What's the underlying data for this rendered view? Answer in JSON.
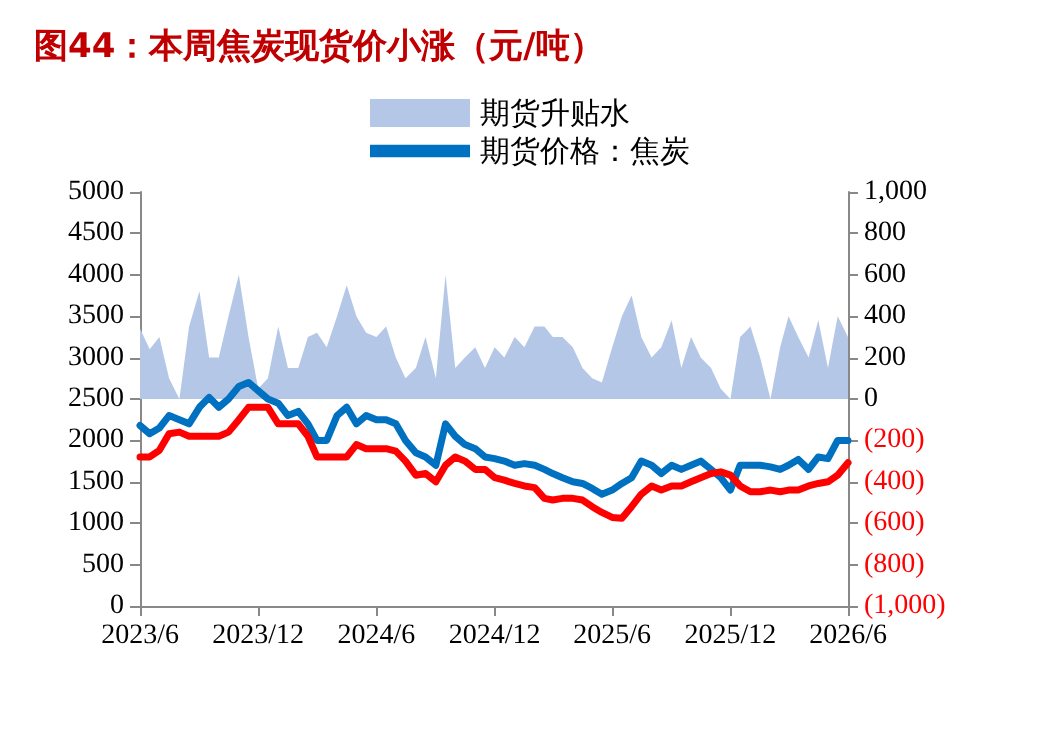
{
  "chart_data": {
    "type": "line",
    "title": "图44：本周焦炭现货价小涨（元/吨）",
    "x": [
      "2023-06-01",
      "2023-06-16",
      "2023-07-01",
      "2023-07-16",
      "2023-08-01",
      "2023-08-16",
      "2023-09-01",
      "2023-09-16",
      "2023-10-01",
      "2023-10-16",
      "2023-11-01",
      "2023-11-16",
      "2023-12-01",
      "2023-12-16",
      "2024-01-01",
      "2024-01-16",
      "2024-02-01",
      "2024-02-16",
      "2024-03-01",
      "2024-03-16",
      "2024-04-01",
      "2024-04-16",
      "2024-05-01",
      "2024-05-16",
      "2024-06-01",
      "2024-06-16",
      "2024-07-01",
      "2024-07-16",
      "2024-08-01",
      "2024-08-16",
      "2024-09-01",
      "2024-09-16",
      "2024-10-01",
      "2024-10-16",
      "2024-11-01",
      "2024-11-16",
      "2024-12-01",
      "2024-12-16",
      "2025-01-01",
      "2025-01-16",
      "2025-02-01",
      "2025-02-16",
      "2025-03-01",
      "2025-03-16",
      "2025-04-01",
      "2025-04-16",
      "2025-05-01",
      "2025-05-16",
      "2025-06-01",
      "2025-06-16",
      "2025-07-01",
      "2025-07-16",
      "2025-08-01",
      "2025-08-16",
      "2025-09-01",
      "2025-09-16",
      "2025-10-01",
      "2025-10-16",
      "2025-11-01",
      "2025-11-16",
      "2025-12-01",
      "2025-12-16",
      "2026-01-01",
      "2026-01-16",
      "2026-02-01",
      "2026-02-16",
      "2026-03-01",
      "2026-03-16",
      "2026-04-01",
      "2026-04-16",
      "2026-05-01",
      "2026-05-16",
      "2026-06-01"
    ],
    "series": [
      {
        "name": "期货升贴水",
        "type": "area",
        "axis": "y2",
        "color": "#b4c7e7",
        "values": [
          340,
          240,
          300,
          100,
          0,
          350,
          520,
          200,
          200,
          400,
          600,
          300,
          50,
          100,
          350,
          150,
          150,
          300,
          320,
          250,
          400,
          550,
          400,
          320,
          300,
          350,
          200,
          100,
          150,
          300,
          100,
          600,
          150,
          200,
          250,
          150,
          250,
          200,
          300,
          250,
          350,
          350,
          300,
          300,
          250,
          150,
          100,
          80,
          250,
          400,
          500,
          300,
          200,
          250,
          380,
          150,
          300,
          200,
          150,
          50,
          0,
          300,
          350,
          200,
          0,
          250,
          400,
          300,
          200,
          380,
          150,
          400,
          300
        ]
      },
      {
        "name": "期货价格：焦炭",
        "color": "#0070c0",
        "values": [
          2180,
          2080,
          2150,
          2300,
          2250,
          2200,
          2400,
          2520,
          2400,
          2500,
          2650,
          2700,
          2600,
          2500,
          2450,
          2300,
          2350,
          2200,
          2000,
          2000,
          2300,
          2400,
          2200,
          2300,
          2250,
          2250,
          2200,
          2000,
          1850,
          1800,
          1700,
          2200,
          2050,
          1950,
          1900,
          1800,
          1780,
          1750,
          1700,
          1720,
          1700,
          1650,
          1600,
          1550,
          1500,
          1480,
          1420,
          1350,
          1400,
          1480,
          1550,
          1750,
          1700,
          1600,
          1700,
          1650,
          1700,
          1750,
          1650,
          1550,
          1400,
          1700,
          1700,
          1700,
          1680,
          1650,
          1700,
          1770,
          1650,
          1800,
          1780,
          2000,
          2000
        ]
      },
      {
        "color": "#ff0000",
        "values": [
          1800,
          1800,
          1880,
          2080,
          2100,
          2050,
          2050,
          2050,
          2050,
          2100,
          2250,
          2400,
          2400,
          2400,
          2200,
          2200,
          2200,
          2050,
          1800,
          1800,
          1800,
          1800,
          1950,
          1900,
          1900,
          1900,
          1870,
          1750,
          1580,
          1600,
          1500,
          1700,
          1800,
          1750,
          1650,
          1650,
          1550,
          1520,
          1480,
          1450,
          1430,
          1300,
          1280,
          1300,
          1300,
          1280,
          1200,
          1130,
          1070,
          1060,
          1200,
          1350,
          1450,
          1400,
          1450,
          1450,
          1500,
          1550,
          1600,
          1620,
          1580,
          1450,
          1380,
          1380,
          1400,
          1380,
          1400,
          1400,
          1450,
          1480,
          1500,
          1580,
          1730
        ]
      }
    ],
    "xlim": [
      "2023-06-01",
      "2026-06-01"
    ],
    "xticks": [
      {
        "value": "2023-06-01",
        "label": "2023/6"
      },
      {
        "value": "2023-12-01",
        "label": "2023/12"
      },
      {
        "value": "2024-06-01",
        "label": "2024/6"
      },
      {
        "value": "2024-12-01",
        "label": "2024/12"
      },
      {
        "value": "2025-06-01",
        "label": "2025/6"
      },
      {
        "value": "2025-12-01",
        "label": "2025/12"
      },
      {
        "value": "2026-06-01",
        "label": "2026/6"
      }
    ],
    "ylim": [
      0,
      5000
    ],
    "yticks": [
      0,
      500,
      1000,
      1500,
      2000,
      2500,
      3000,
      3500,
      4000,
      4500,
      5000
    ],
    "y2lim": [
      -1000,
      1000
    ],
    "y2ticks": [
      {
        "value": -1000,
        "label": "(1,000)"
      },
      {
        "value": -800,
        "label": "(800)"
      },
      {
        "value": -600,
        "label": "(600)"
      },
      {
        "value": -400,
        "label": "(400)"
      },
      {
        "value": -200,
        "label": "(200)"
      },
      0,
      200,
      400,
      600,
      800,
      {
        "value": 1000,
        "label": "1,000"
      }
    ],
    "grid": false,
    "legend": "top",
    "marker": "none",
    "line_style": "solid"
  }
}
